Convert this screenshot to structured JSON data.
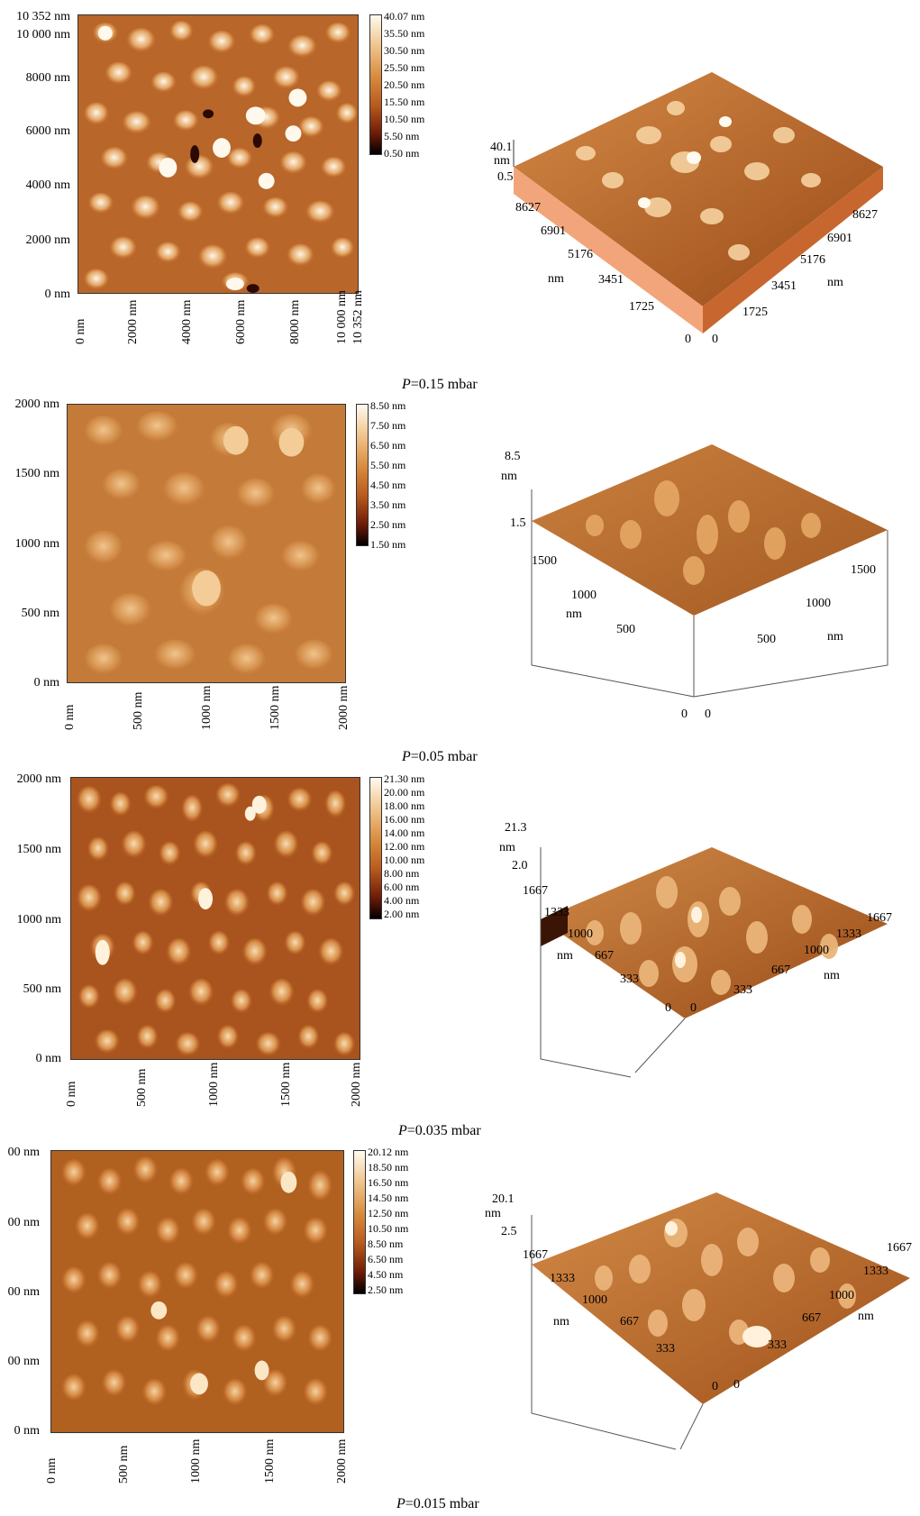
{
  "panels": [
    {
      "caption_var": "P",
      "caption_rest": "=0.15 mbar",
      "y_ticks": [
        "10 352 nm",
        "10 000 nm",
        "8000 nm",
        "6000 nm",
        "4000 nm",
        "2000 nm",
        "0 nm"
      ],
      "x_ticks": [
        "0 nm",
        "2000 nm",
        "4000 nm",
        "6000 nm",
        "8000 nm",
        "10 000 nm",
        "10 352 nm"
      ],
      "colorbar": [
        "40.07 nm",
        "35.50 nm",
        "30.50 nm",
        "25.50 nm",
        "20.50 nm",
        "15.50 nm",
        "10.50 nm",
        "5.50 nm",
        "0.50 nm"
      ],
      "z_top": "40.1",
      "z_unit": "nm",
      "z_bottom": "0.5",
      "left_axis": [
        "8627",
        "6901",
        "5176",
        "3451",
        "1725",
        "0"
      ],
      "left_unit": "nm",
      "right_axis": [
        "8627",
        "6901",
        "5176",
        "3451",
        "1725",
        "0"
      ],
      "right_unit": "nm"
    },
    {
      "caption_var": "P",
      "caption_rest": "=0.05 mbar",
      "y_ticks": [
        "2000 nm",
        "1500 nm",
        "1000 nm",
        "500 nm",
        "0 nm"
      ],
      "x_ticks": [
        "0 nm",
        "500 nm",
        "1000 nm",
        "1500 nm",
        "2000 nm"
      ],
      "colorbar": [
        "8.50 nm",
        "7.50 nm",
        "6.50 nm",
        "5.50 nm",
        "4.50 nm",
        "3.50 nm",
        "2.50 nm",
        "1.50 nm"
      ],
      "z_top": "8.5",
      "z_unit": "nm",
      "z_bottom": "1.5",
      "left_axis": [
        "1500",
        "1000",
        "500",
        "0"
      ],
      "left_unit": "nm",
      "right_axis": [
        "1500",
        "1000",
        "500",
        "0"
      ],
      "right_unit": "nm"
    },
    {
      "caption_var": "P",
      "caption_rest": "=0.035 mbar",
      "y_ticks": [
        "2000 nm",
        "1500 nm",
        "1000 nm",
        "500 nm",
        "0 nm"
      ],
      "x_ticks": [
        "0 nm",
        "500 nm",
        "1000 nm",
        "1500 nm",
        "2000 nm"
      ],
      "colorbar": [
        "21.30 nm",
        "20.00 nm",
        "18.00 nm",
        "16.00 nm",
        "14.00 nm",
        "12.00 nm",
        "10.00 nm",
        "8.00 nm",
        "6.00 nm",
        "4.00 nm",
        "2.00 nm"
      ],
      "z_top": "21.3",
      "z_unit": "nm",
      "z_bottom": "2.0",
      "left_axis": [
        "1667",
        "1333",
        "1000",
        "667",
        "333",
        "0"
      ],
      "left_unit": "nm",
      "right_axis": [
        "1667",
        "1333",
        "1000",
        "667",
        "333",
        "0"
      ],
      "right_unit": "nm"
    },
    {
      "caption_var": "P",
      "caption_rest": "=0.015 mbar",
      "y_ticks": [
        "00 nm",
        "00 nm",
        "00 nm",
        "00 nm",
        "0 nm"
      ],
      "x_ticks": [
        "0 nm",
        "500 nm",
        "1000 nm",
        "1500 nm",
        "2000 nm"
      ],
      "colorbar": [
        "20.12 nm",
        "18.50 nm",
        "16.50 nm",
        "14.50 nm",
        "12.50 nm",
        "10.50 nm",
        "8.50 nm",
        "6.50 nm",
        "4.50 nm",
        "2.50 nm"
      ],
      "z_top": "20.1",
      "z_unit": "nm",
      "z_bottom": "2.5",
      "left_axis": [
        "1667",
        "1333",
        "1000",
        "667",
        "333",
        "0"
      ],
      "left_unit": "nm",
      "right_axis": [
        "1667",
        "1333",
        "1000",
        "667",
        "333",
        "0"
      ],
      "right_unit": "nm"
    }
  ],
  "colors": {
    "surface_dark": "#7a2a08",
    "surface_mid": "#c8742e",
    "surface_light": "#f6d6a6",
    "highlight": "#fff6e6"
  }
}
